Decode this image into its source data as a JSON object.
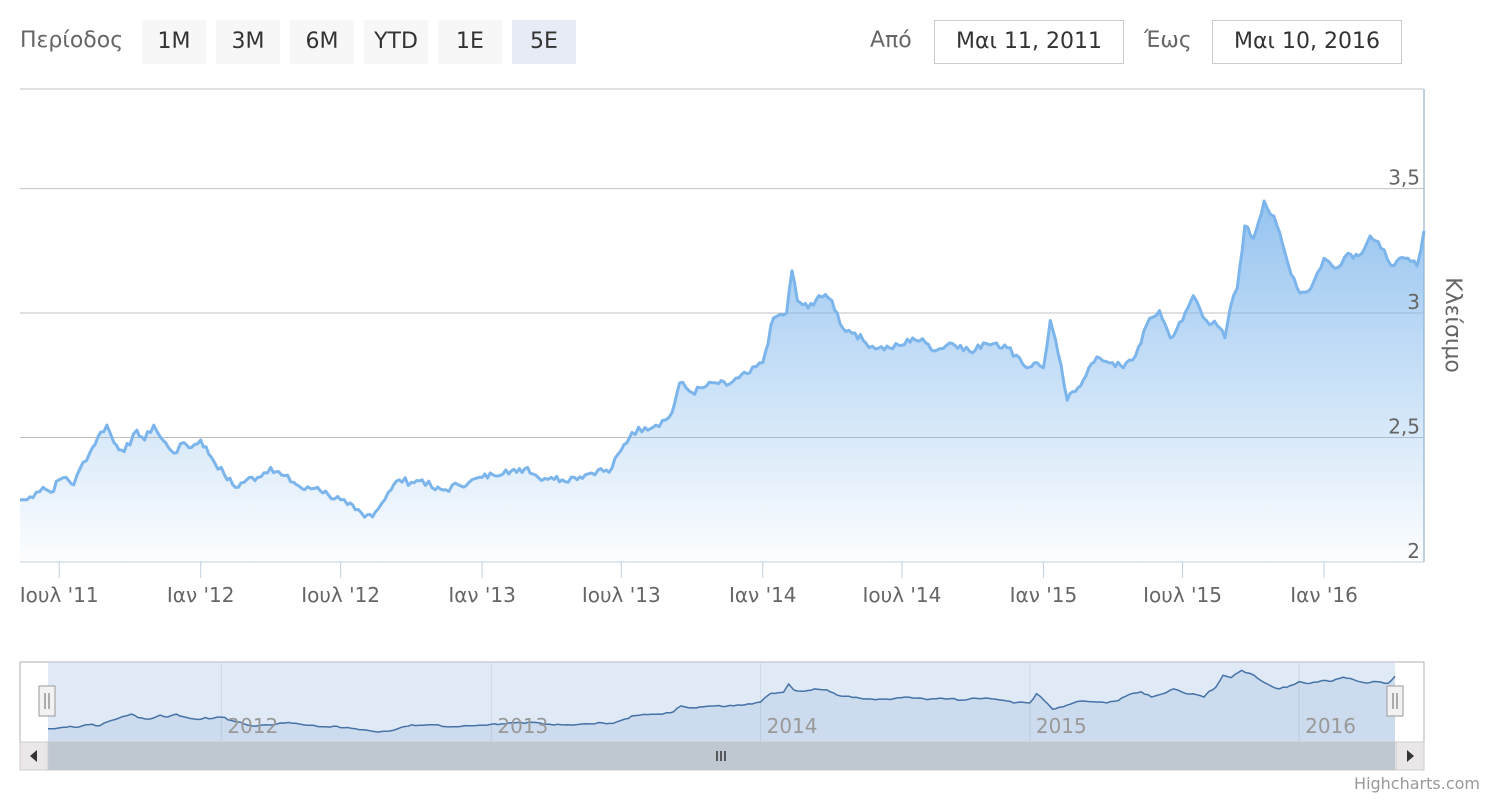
{
  "range_selector": {
    "label": "Περίοδος",
    "buttons": [
      {
        "label": "1Μ",
        "active": false
      },
      {
        "label": "3Μ",
        "active": false
      },
      {
        "label": "6Μ",
        "active": false
      },
      {
        "label": "YTD",
        "active": false
      },
      {
        "label": "1Ε",
        "active": false
      },
      {
        "label": "5Ε",
        "active": true
      }
    ]
  },
  "date_inputs": {
    "from_label": "Από",
    "from_value": "Μαι 11, 2011",
    "to_label": "Έως",
    "to_value": "Μαι 10, 2016"
  },
  "credits": "Highcharts.com",
  "colors": {
    "line": "#7cb5ec",
    "navigator_line": "#4572a7",
    "grid": "#c0c0c0",
    "scrollbar": "#bfc8d1",
    "selected_mask": "#e6ebf5"
  },
  "chart_data": {
    "type": "area",
    "x_start": "2011-05-11",
    "x_end": "2016-05-10",
    "ylabel": "Κλείσιμο",
    "ylim": [
      2,
      3.9
    ],
    "y_ticks": [
      {
        "value": 2,
        "label": "2"
      },
      {
        "value": 2.5,
        "label": "2,5"
      },
      {
        "value": 3,
        "label": "3"
      },
      {
        "value": 3.5,
        "label": "3,5"
      }
    ],
    "x_ticks": [
      {
        "date": "2011-07-01",
        "label": "Ιουλ '11"
      },
      {
        "date": "2012-01-01",
        "label": "Ιαν '12"
      },
      {
        "date": "2012-07-01",
        "label": "Ιουλ '12"
      },
      {
        "date": "2013-01-01",
        "label": "Ιαν '13"
      },
      {
        "date": "2013-07-01",
        "label": "Ιουλ '13"
      },
      {
        "date": "2014-01-01",
        "label": "Ιαν '14"
      },
      {
        "date": "2014-07-01",
        "label": "Ιουλ '14"
      },
      {
        "date": "2015-01-01",
        "label": "Ιαν '15"
      },
      {
        "date": "2015-07-01",
        "label": "Ιουλ '15"
      },
      {
        "date": "2016-01-01",
        "label": "Ιαν '16"
      }
    ],
    "navigator_ticks": [
      {
        "date": "2012-01-01",
        "label": "2012"
      },
      {
        "date": "2013-01-01",
        "label": "2013"
      },
      {
        "date": "2014-01-01",
        "label": "2014"
      },
      {
        "date": "2015-01-01",
        "label": "2015"
      },
      {
        "date": "2016-01-01",
        "label": "2016"
      }
    ],
    "series": [
      {
        "x": [
          "2011-05-11",
          "2011-05-20",
          "2011-06-01",
          "2011-06-10",
          "2011-06-20",
          "2011-07-01",
          "2011-07-10",
          "2011-07-20",
          "2011-08-01",
          "2011-08-10",
          "2011-08-20",
          "2011-09-01",
          "2011-09-10",
          "2011-09-20",
          "2011-10-01",
          "2011-10-10",
          "2011-10-20",
          "2011-11-01",
          "2011-11-10",
          "2011-11-20",
          "2011-12-01",
          "2011-12-10",
          "2011-12-20",
          "2012-01-01",
          "2012-01-15",
          "2012-02-01",
          "2012-02-15",
          "2012-03-01",
          "2012-03-15",
          "2012-04-01",
          "2012-04-15",
          "2012-05-01",
          "2012-05-15",
          "2012-06-01",
          "2012-06-15",
          "2012-07-01",
          "2012-07-10",
          "2012-07-20",
          "2012-08-01",
          "2012-08-15",
          "2012-09-01",
          "2012-09-15",
          "2012-10-01",
          "2012-10-15",
          "2012-11-01",
          "2012-11-15",
          "2012-12-01",
          "2012-12-15",
          "2013-01-01",
          "2013-01-15",
          "2013-02-01",
          "2013-02-15",
          "2013-03-01",
          "2013-03-15",
          "2013-04-01",
          "2013-04-15",
          "2013-05-01",
          "2013-05-15",
          "2013-06-01",
          "2013-06-15",
          "2013-07-01",
          "2013-07-15",
          "2013-08-01",
          "2013-08-15",
          "2013-09-01",
          "2013-09-05",
          "2013-09-15",
          "2013-10-01",
          "2013-10-15",
          "2013-11-01",
          "2013-11-15",
          "2013-12-01",
          "2013-12-15",
          "2014-01-01",
          "2014-01-15",
          "2014-02-01",
          "2014-02-08",
          "2014-02-15",
          "2014-03-01",
          "2014-03-15",
          "2014-04-01",
          "2014-04-15",
          "2014-05-01",
          "2014-05-15",
          "2014-06-01",
          "2014-06-15",
          "2014-07-01",
          "2014-07-15",
          "2014-08-01",
          "2014-08-15",
          "2014-09-01",
          "2014-09-15",
          "2014-10-01",
          "2014-10-15",
          "2014-11-01",
          "2014-11-15",
          "2014-12-01",
          "2014-12-10",
          "2014-12-20",
          "2015-01-01",
          "2015-01-10",
          "2015-01-20",
          "2015-02-01",
          "2015-02-15",
          "2015-03-01",
          "2015-03-15",
          "2015-04-01",
          "2015-04-15",
          "2015-05-01",
          "2015-05-15",
          "2015-06-01",
          "2015-06-15",
          "2015-07-01",
          "2015-07-15",
          "2015-08-01",
          "2015-08-15",
          "2015-08-25",
          "2015-09-01",
          "2015-09-10",
          "2015-09-20",
          "2015-10-01",
          "2015-10-15",
          "2015-11-01",
          "2015-11-15",
          "2015-12-01",
          "2015-12-15",
          "2016-01-01",
          "2016-01-15",
          "2016-02-01",
          "2016-02-15",
          "2016-03-01",
          "2016-03-15",
          "2016-04-01",
          "2016-04-15",
          "2016-05-01",
          "2016-05-10"
        ],
        "y": [
          2.25,
          2.25,
          2.28,
          2.3,
          2.28,
          2.33,
          2.34,
          2.31,
          2.4,
          2.44,
          2.5,
          2.55,
          2.48,
          2.45,
          2.47,
          2.53,
          2.49,
          2.55,
          2.5,
          2.46,
          2.44,
          2.48,
          2.46,
          2.49,
          2.42,
          2.35,
          2.3,
          2.33,
          2.34,
          2.38,
          2.35,
          2.32,
          2.29,
          2.3,
          2.27,
          2.25,
          2.23,
          2.21,
          2.18,
          2.2,
          2.28,
          2.33,
          2.32,
          2.33,
          2.29,
          2.29,
          2.31,
          2.32,
          2.34,
          2.35,
          2.37,
          2.36,
          2.38,
          2.34,
          2.34,
          2.33,
          2.34,
          2.35,
          2.37,
          2.36,
          2.45,
          2.52,
          2.54,
          2.55,
          2.58,
          2.6,
          2.72,
          2.68,
          2.7,
          2.72,
          2.71,
          2.74,
          2.76,
          2.8,
          2.98,
          3.0,
          3.17,
          3.05,
          3.02,
          3.07,
          3.05,
          2.94,
          2.92,
          2.88,
          2.86,
          2.86,
          2.87,
          2.9,
          2.88,
          2.85,
          2.88,
          2.87,
          2.84,
          2.88,
          2.88,
          2.86,
          2.82,
          2.78,
          2.8,
          2.78,
          2.97,
          2.84,
          2.65,
          2.7,
          2.78,
          2.82,
          2.8,
          2.78,
          2.83,
          2.95,
          3.01,
          2.9,
          2.97,
          3.07,
          2.97,
          2.95,
          2.9,
          3.02,
          3.1,
          3.35,
          3.3,
          3.45,
          3.35,
          3.2,
          3.08,
          3.1,
          3.22,
          3.18,
          3.24,
          3.23,
          3.31,
          3.26,
          3.19,
          3.22,
          3.19,
          3.33
        ]
      }
    ]
  }
}
